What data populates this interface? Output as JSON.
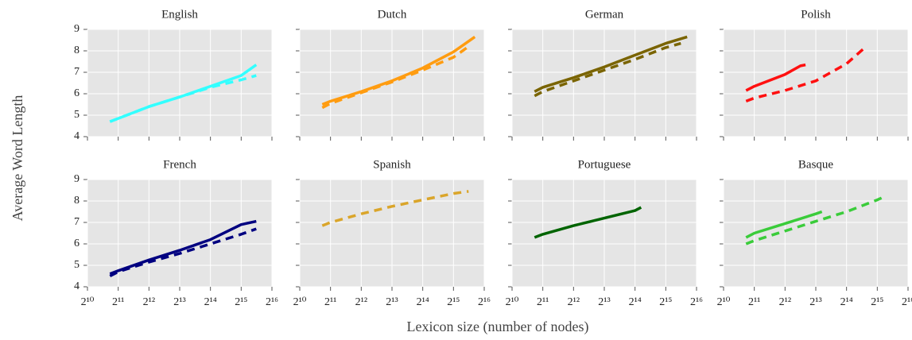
{
  "ylabel": "Average Word Length",
  "xlabel": "Lexicon size (number of nodes)",
  "chart_data": [
    {
      "type": "line",
      "title": "English",
      "xscale": "log2",
      "grid": true,
      "xlim": [
        1024,
        65536
      ],
      "ylim": [
        4,
        9
      ],
      "yticks": [
        4,
        5,
        6,
        7,
        8,
        9
      ],
      "xticks": [
        1024,
        2048,
        4096,
        8192,
        16384,
        32768,
        65536
      ],
      "series": [
        {
          "color": "#33ffff",
          "style": "solid",
          "x": [
            1700,
            2048,
            4096,
            8192,
            16384,
            32768,
            46000
          ],
          "values": [
            4.7,
            4.85,
            5.4,
            5.85,
            6.35,
            6.85,
            7.35
          ]
        },
        {
          "color": "#33ffff",
          "style": "dashed",
          "x": [
            1700,
            2048,
            4096,
            8192,
            16384,
            32768,
            46000
          ],
          "values": [
            4.7,
            4.85,
            5.4,
            5.85,
            6.3,
            6.65,
            6.85
          ]
        }
      ]
    },
    {
      "type": "line",
      "title": "Dutch",
      "xscale": "log2",
      "grid": true,
      "xlim": [
        1024,
        65536
      ],
      "ylim": [
        4,
        9
      ],
      "yticks": [
        4,
        5,
        6,
        7,
        8,
        9
      ],
      "xticks": [
        1024,
        2048,
        4096,
        8192,
        16384,
        32768,
        65536
      ],
      "series": [
        {
          "color": "#ff9c10",
          "style": "solid",
          "x": [
            1700,
            2048,
            4096,
            8192,
            16384,
            32768,
            53000
          ],
          "values": [
            5.5,
            5.65,
            6.1,
            6.6,
            7.2,
            7.95,
            8.65
          ]
        },
        {
          "color": "#ff9c10",
          "style": "dashed",
          "x": [
            1700,
            2048,
            4096,
            8192,
            16384,
            32768,
            46000
          ],
          "values": [
            5.35,
            5.55,
            6.05,
            6.55,
            7.1,
            7.7,
            8.2
          ]
        }
      ]
    },
    {
      "type": "line",
      "title": "German",
      "xscale": "log2",
      "grid": true,
      "xlim": [
        1024,
        65536
      ],
      "ylim": [
        4,
        9
      ],
      "yticks": [
        4,
        5,
        6,
        7,
        8,
        9
      ],
      "xticks": [
        1024,
        2048,
        4096,
        8192,
        16384,
        32768,
        65536
      ],
      "series": [
        {
          "color": "#7a6400",
          "style": "solid",
          "x": [
            1700,
            2048,
            4096,
            8192,
            16384,
            32768,
            53000
          ],
          "values": [
            6.1,
            6.3,
            6.75,
            7.25,
            7.8,
            8.35,
            8.65
          ]
        },
        {
          "color": "#7a6400",
          "style": "dashed",
          "x": [
            1700,
            2048,
            4096,
            8192,
            16384,
            32768,
            46000
          ],
          "values": [
            5.9,
            6.1,
            6.6,
            7.1,
            7.6,
            8.15,
            8.35
          ]
        }
      ]
    },
    {
      "type": "line",
      "title": "Polish",
      "xscale": "log2",
      "grid": true,
      "xlim": [
        1024,
        65536
      ],
      "ylim": [
        4,
        9
      ],
      "yticks": [
        4,
        5,
        6,
        7,
        8,
        9
      ],
      "xticks": [
        1024,
        2048,
        4096,
        8192,
        16384,
        32768,
        65536
      ],
      "series": [
        {
          "color": "#ff1010",
          "style": "solid",
          "x": [
            1700,
            2048,
            4096,
            5800,
            6500
          ],
          "values": [
            6.15,
            6.35,
            6.9,
            7.3,
            7.35
          ]
        },
        {
          "color": "#ff1010",
          "style": "dashed",
          "x": [
            1700,
            2048,
            4096,
            8192,
            16384,
            24800
          ],
          "values": [
            5.65,
            5.8,
            6.15,
            6.6,
            7.4,
            8.15
          ]
        }
      ]
    },
    {
      "type": "line",
      "title": "French",
      "xscale": "log2",
      "grid": true,
      "xlim": [
        1024,
        65536
      ],
      "ylim": [
        4,
        9
      ],
      "yticks": [
        4,
        5,
        6,
        7,
        8,
        9
      ],
      "xticks": [
        {
          "value": 1024,
          "label": "2¹⁰"
        },
        {
          "value": 2048,
          "label": "2¹¹"
        },
        {
          "value": 4096,
          "label": "2¹²"
        },
        {
          "value": 8192,
          "label": "2¹³"
        },
        {
          "value": 16384,
          "label": "2¹⁴"
        },
        {
          "value": 32768,
          "label": "2¹⁵"
        },
        {
          "value": 65536,
          "label": "2¹⁶"
        }
      ],
      "series": [
        {
          "color": "#000080",
          "style": "solid",
          "x": [
            1700,
            2048,
            4096,
            8192,
            16384,
            32768,
            46000
          ],
          "values": [
            4.6,
            4.75,
            5.25,
            5.7,
            6.2,
            6.9,
            7.05
          ]
        },
        {
          "color": "#000080",
          "style": "dashed",
          "x": [
            1700,
            2048,
            4096,
            8192,
            16384,
            32768,
            46000
          ],
          "values": [
            4.5,
            4.7,
            5.15,
            5.55,
            6.0,
            6.45,
            6.7
          ]
        }
      ]
    },
    {
      "type": "line",
      "title": "Spanish",
      "xscale": "log2",
      "grid": true,
      "xlim": [
        1024,
        65536
      ],
      "ylim": [
        4,
        9
      ],
      "yticks": [
        4,
        5,
        6,
        7,
        8,
        9
      ],
      "xticks": [
        {
          "value": 1024,
          "label": "2¹⁰"
        },
        {
          "value": 2048,
          "label": "2¹¹"
        },
        {
          "value": 4096,
          "label": "2¹²"
        },
        {
          "value": 8192,
          "label": "2¹³"
        },
        {
          "value": 16384,
          "label": "2¹⁴"
        },
        {
          "value": 32768,
          "label": "2¹⁵"
        },
        {
          "value": 65536,
          "label": "2¹⁶"
        }
      ],
      "series": [
        {
          "color": "#daa52a",
          "style": "dashed",
          "x": [
            1700,
            2048,
            4096,
            8192,
            16384,
            32768,
            46000
          ],
          "values": [
            6.85,
            7.0,
            7.4,
            7.75,
            8.05,
            8.35,
            8.45
          ]
        }
      ]
    },
    {
      "type": "line",
      "title": "Portuguese",
      "xscale": "log2",
      "grid": true,
      "xlim": [
        1024,
        65536
      ],
      "ylim": [
        4,
        9
      ],
      "yticks": [
        4,
        5,
        6,
        7,
        8,
        9
      ],
      "xticks": [
        {
          "value": 1024,
          "label": "2¹⁰"
        },
        {
          "value": 2048,
          "label": "2¹¹"
        },
        {
          "value": 4096,
          "label": "2¹²"
        },
        {
          "value": 8192,
          "label": "2¹³"
        },
        {
          "value": 16384,
          "label": "2¹⁴"
        },
        {
          "value": 32768,
          "label": "2¹⁵"
        },
        {
          "value": 65536,
          "label": "2¹⁶"
        }
      ],
      "series": [
        {
          "color": "#006400",
          "style": "solid",
          "x": [
            1700,
            2048,
            4096,
            8192,
            16384,
            18800
          ],
          "values": [
            6.3,
            6.45,
            6.85,
            7.2,
            7.55,
            7.7
          ]
        }
      ]
    },
    {
      "type": "line",
      "title": "Basque",
      "xscale": "log2",
      "grid": true,
      "xlim": [
        1024,
        65536
      ],
      "ylim": [
        4,
        9
      ],
      "yticks": [
        4,
        5,
        6,
        7,
        8,
        9
      ],
      "xticks": [
        {
          "value": 1024,
          "label": "2¹⁰"
        },
        {
          "value": 2048,
          "label": "2¹¹"
        },
        {
          "value": 4096,
          "label": "2¹²"
        },
        {
          "value": 8192,
          "label": "2¹³"
        },
        {
          "value": 16384,
          "label": "2¹⁴"
        },
        {
          "value": 32768,
          "label": "2¹⁵"
        },
        {
          "value": 65536,
          "label": "2¹⁶"
        }
      ],
      "series": [
        {
          "color": "#3acc3a",
          "style": "solid",
          "x": [
            1700,
            2048,
            4096,
            8192,
            9400
          ],
          "values": [
            6.3,
            6.5,
            6.95,
            7.4,
            7.5
          ]
        },
        {
          "color": "#3acc3a",
          "style": "dashed",
          "x": [
            1700,
            2048,
            4096,
            8192,
            16384,
            32768,
            40300
          ],
          "values": [
            6.0,
            6.15,
            6.6,
            7.05,
            7.5,
            8.05,
            8.25
          ]
        }
      ]
    }
  ]
}
